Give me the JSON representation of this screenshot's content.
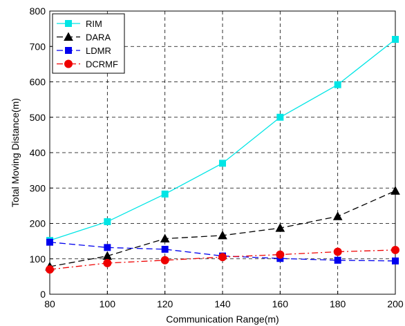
{
  "chart_data": {
    "type": "line",
    "title": "",
    "xlabel": "Communication Range(m)",
    "ylabel": "Total Moving Distance(m)",
    "x": [
      80,
      100,
      120,
      140,
      160,
      180,
      200
    ],
    "xlim": [
      80,
      200
    ],
    "ylim": [
      0,
      800
    ],
    "xticks": [
      "80",
      "100",
      "120",
      "140",
      "160",
      "180",
      "200"
    ],
    "yticks": [
      "0",
      "100",
      "200",
      "300",
      "400",
      "500",
      "600",
      "700",
      "800"
    ],
    "grid": true,
    "legend_position": "top-left",
    "series": [
      {
        "name": "RIM",
        "values": [
          152,
          205,
          283,
          370,
          500,
          592,
          720
        ],
        "color": "#00e5e5",
        "marker": "square",
        "line": "solid"
      },
      {
        "name": "DARA",
        "values": [
          78,
          108,
          157,
          166,
          187,
          220,
          292
        ],
        "color": "#000000",
        "marker": "triangle",
        "line": "dashed"
      },
      {
        "name": "LDMR",
        "values": [
          147,
          132,
          127,
          108,
          101,
          96,
          94
        ],
        "color": "#0000ee",
        "marker": "square",
        "line": "dashed"
      },
      {
        "name": "DCRMF",
        "values": [
          70,
          88,
          96,
          105,
          112,
          120,
          125
        ],
        "color": "#ee0000",
        "marker": "circle",
        "line": "dashdot"
      }
    ]
  }
}
